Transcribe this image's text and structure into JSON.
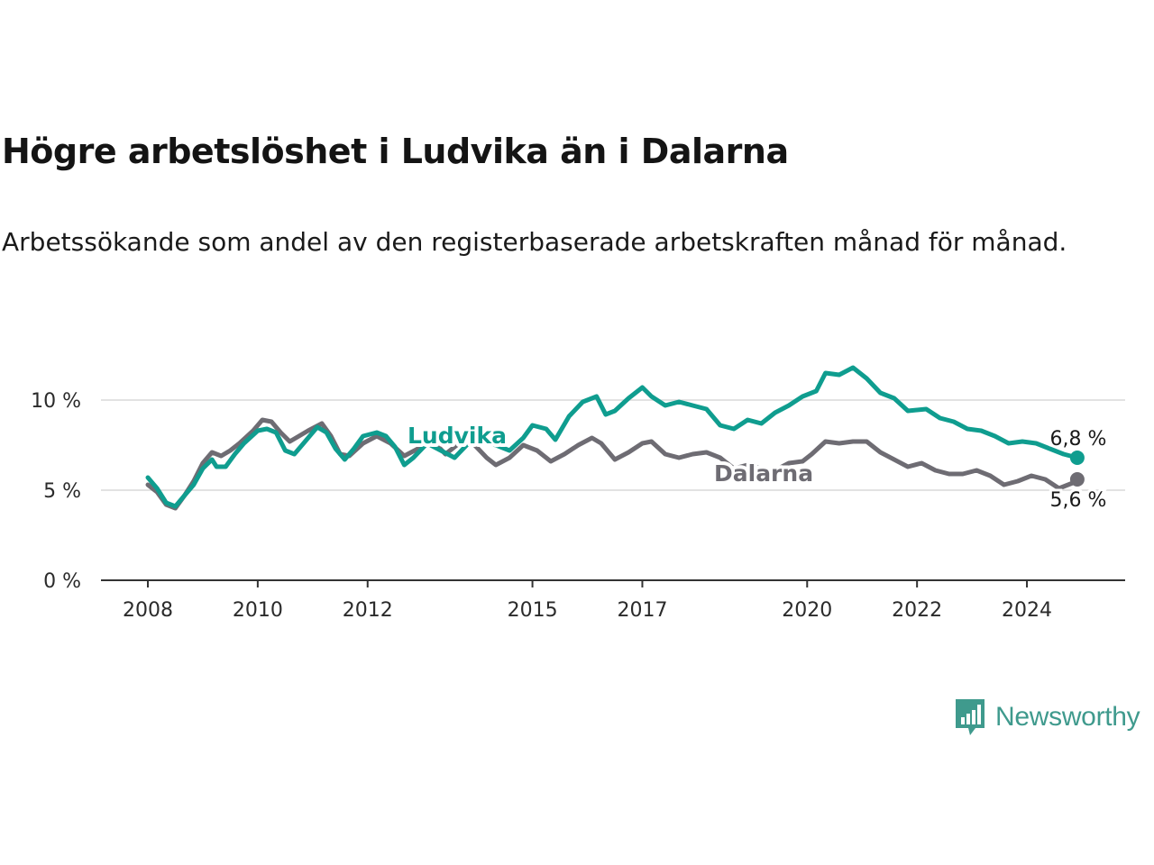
{
  "header": {
    "title": "Högre arbetslöshet i Ludvika än i Dalarna",
    "subtitle": "Arbetssökande som andel av den registerbaserade arbetskraften månad för månad."
  },
  "brand": {
    "name": "Newsworthy",
    "icon": "newsworthy-chart-bubble-icon",
    "color": "#3f9a8d"
  },
  "colors": {
    "ludvika": "#0f9d8f",
    "dalarna": "#6e6c73",
    "grid": "#d9d9d9",
    "axis": "#333333"
  },
  "chart_data": {
    "type": "line",
    "title": "Högre arbetslöshet i Ludvika än i Dalarna",
    "subtitle": "Arbetssökande som andel av den registerbaserade arbetskraften månad för månad.",
    "xlabel": "",
    "ylabel": "",
    "x_range": [
      "2008-01",
      "2024-12"
    ],
    "ylim": [
      0,
      12
    ],
    "y_ticks": [
      0,
      5,
      10
    ],
    "y_tick_labels": [
      "0 %",
      "5 %",
      "10 %"
    ],
    "x_ticks": [
      "2008",
      "2010",
      "2012",
      "2015",
      "2017",
      "2020",
      "2022",
      "2024"
    ],
    "grid": true,
    "legend": "inline labels",
    "series": [
      {
        "name": "Ludvika",
        "color": "#0f9d8f",
        "end_label": "6,8 %",
        "points": [
          [
            "2008-01",
            5.7
          ],
          [
            "2008-03",
            5.1
          ],
          [
            "2008-05",
            4.3
          ],
          [
            "2008-07",
            4.1
          ],
          [
            "2008-09",
            4.7
          ],
          [
            "2008-11",
            5.3
          ],
          [
            "2009-01",
            6.2
          ],
          [
            "2009-03",
            6.7
          ],
          [
            "2009-04",
            6.3
          ],
          [
            "2009-06",
            6.3
          ],
          [
            "2009-08",
            7.0
          ],
          [
            "2009-10",
            7.6
          ],
          [
            "2010-01",
            8.3
          ],
          [
            "2010-03",
            8.4
          ],
          [
            "2010-05",
            8.2
          ],
          [
            "2010-07",
            7.2
          ],
          [
            "2010-09",
            7.0
          ],
          [
            "2010-11",
            7.6
          ],
          [
            "2011-02",
            8.5
          ],
          [
            "2011-04",
            8.2
          ],
          [
            "2011-06",
            7.3
          ],
          [
            "2011-08",
            6.7
          ],
          [
            "2011-10",
            7.3
          ],
          [
            "2011-12",
            8.0
          ],
          [
            "2012-03",
            8.2
          ],
          [
            "2012-05",
            8.0
          ],
          [
            "2012-07",
            7.4
          ],
          [
            "2012-09",
            6.4
          ],
          [
            "2012-11",
            6.8
          ],
          [
            "2013-02",
            7.6
          ],
          [
            "2013-05",
            7.2
          ],
          [
            "2013-08",
            6.8
          ],
          [
            "2013-11",
            7.6
          ],
          [
            "2014-02",
            7.7
          ],
          [
            "2014-05",
            7.5
          ],
          [
            "2014-08",
            7.2
          ],
          [
            "2014-11",
            7.9
          ],
          [
            "2015-01",
            8.6
          ],
          [
            "2015-04",
            8.4
          ],
          [
            "2015-06",
            7.8
          ],
          [
            "2015-09",
            9.1
          ],
          [
            "2015-12",
            9.9
          ],
          [
            "2016-03",
            10.2
          ],
          [
            "2016-05",
            9.2
          ],
          [
            "2016-07",
            9.4
          ],
          [
            "2016-10",
            10.1
          ],
          [
            "2017-01",
            10.7
          ],
          [
            "2017-03",
            10.2
          ],
          [
            "2017-06",
            9.7
          ],
          [
            "2017-09",
            9.9
          ],
          [
            "2017-12",
            9.7
          ],
          [
            "2018-03",
            9.5
          ],
          [
            "2018-06",
            8.6
          ],
          [
            "2018-09",
            8.4
          ],
          [
            "2018-12",
            8.9
          ],
          [
            "2019-03",
            8.7
          ],
          [
            "2019-06",
            9.3
          ],
          [
            "2019-09",
            9.7
          ],
          [
            "2019-12",
            10.2
          ],
          [
            "2020-03",
            10.5
          ],
          [
            "2020-05",
            11.5
          ],
          [
            "2020-08",
            11.4
          ],
          [
            "2020-11",
            11.8
          ],
          [
            "2021-02",
            11.2
          ],
          [
            "2021-05",
            10.4
          ],
          [
            "2021-08",
            10.1
          ],
          [
            "2021-11",
            9.4
          ],
          [
            "2022-03",
            9.5
          ],
          [
            "2022-06",
            9.0
          ],
          [
            "2022-09",
            8.8
          ],
          [
            "2022-12",
            8.4
          ],
          [
            "2023-03",
            8.3
          ],
          [
            "2023-06",
            8.0
          ],
          [
            "2023-09",
            7.6
          ],
          [
            "2023-12",
            7.7
          ],
          [
            "2024-03",
            7.6
          ],
          [
            "2024-06",
            7.3
          ],
          [
            "2024-09",
            7.0
          ],
          [
            "2024-12",
            6.8
          ]
        ]
      },
      {
        "name": "Dalarna",
        "color": "#6e6c73",
        "end_label": "5,6 %",
        "points": [
          [
            "2008-01",
            5.3
          ],
          [
            "2008-03",
            4.9
          ],
          [
            "2008-05",
            4.2
          ],
          [
            "2008-07",
            4.0
          ],
          [
            "2008-09",
            4.7
          ],
          [
            "2008-11",
            5.5
          ],
          [
            "2009-01",
            6.5
          ],
          [
            "2009-03",
            7.1
          ],
          [
            "2009-05",
            6.9
          ],
          [
            "2009-07",
            7.2
          ],
          [
            "2009-09",
            7.6
          ],
          [
            "2009-12",
            8.3
          ],
          [
            "2010-02",
            8.9
          ],
          [
            "2010-04",
            8.8
          ],
          [
            "2010-06",
            8.2
          ],
          [
            "2010-08",
            7.7
          ],
          [
            "2010-10",
            8.0
          ],
          [
            "2010-12",
            8.3
          ],
          [
            "2011-03",
            8.7
          ],
          [
            "2011-05",
            8.0
          ],
          [
            "2011-07",
            7.0
          ],
          [
            "2011-09",
            6.9
          ],
          [
            "2011-12",
            7.6
          ],
          [
            "2012-03",
            8.0
          ],
          [
            "2012-06",
            7.6
          ],
          [
            "2012-09",
            6.9
          ],
          [
            "2012-12",
            7.3
          ],
          [
            "2013-03",
            7.8
          ],
          [
            "2013-06",
            7.0
          ],
          [
            "2013-09",
            7.6
          ],
          [
            "2013-12",
            7.6
          ],
          [
            "2014-03",
            6.8
          ],
          [
            "2014-05",
            6.4
          ],
          [
            "2014-08",
            6.8
          ],
          [
            "2014-11",
            7.5
          ],
          [
            "2015-02",
            7.2
          ],
          [
            "2015-05",
            6.6
          ],
          [
            "2015-08",
            7.0
          ],
          [
            "2015-11",
            7.5
          ],
          [
            "2016-02",
            7.9
          ],
          [
            "2016-04",
            7.6
          ],
          [
            "2016-07",
            6.7
          ],
          [
            "2016-10",
            7.1
          ],
          [
            "2017-01",
            7.6
          ],
          [
            "2017-03",
            7.7
          ],
          [
            "2017-06",
            7.0
          ],
          [
            "2017-09",
            6.8
          ],
          [
            "2017-12",
            7.0
          ],
          [
            "2018-03",
            7.1
          ],
          [
            "2018-06",
            6.8
          ],
          [
            "2018-09",
            6.2
          ],
          [
            "2018-12",
            6.4
          ],
          [
            "2019-03",
            6.2
          ],
          [
            "2019-06",
            6.1
          ],
          [
            "2019-09",
            6.5
          ],
          [
            "2019-12",
            6.6
          ],
          [
            "2020-02",
            7.0
          ],
          [
            "2020-05",
            7.7
          ],
          [
            "2020-08",
            7.6
          ],
          [
            "2020-11",
            7.7
          ],
          [
            "2021-02",
            7.7
          ],
          [
            "2021-05",
            7.1
          ],
          [
            "2021-08",
            6.7
          ],
          [
            "2021-11",
            6.3
          ],
          [
            "2022-02",
            6.5
          ],
          [
            "2022-05",
            6.1
          ],
          [
            "2022-08",
            5.9
          ],
          [
            "2022-11",
            5.9
          ],
          [
            "2023-02",
            6.1
          ],
          [
            "2023-05",
            5.8
          ],
          [
            "2023-08",
            5.3
          ],
          [
            "2023-11",
            5.5
          ],
          [
            "2024-02",
            5.8
          ],
          [
            "2024-05",
            5.6
          ],
          [
            "2024-08",
            5.1
          ],
          [
            "2024-11",
            5.4
          ],
          [
            "2024-12",
            5.6
          ]
        ]
      }
    ]
  }
}
